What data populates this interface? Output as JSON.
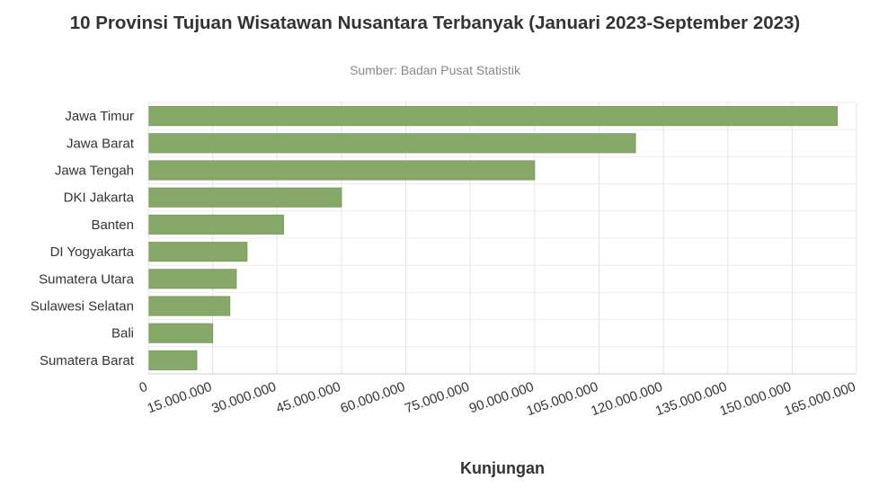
{
  "chart_data": {
    "type": "bar",
    "orientation": "horizontal",
    "title": "10 Provinsi Tujuan Wisatawan Nusantara Terbanyak (Januari 2023-September 2023)",
    "subtitle": "Sumber: Badan Pusat Statistik",
    "categories": [
      "Jawa Timur",
      "Jawa Barat",
      "Jawa Tengah",
      "DKI Jakarta",
      "Banten",
      "DI Yogyakarta",
      "Sumatera Utara",
      "Sulawesi Selatan",
      "Bali",
      "Sumatera Barat"
    ],
    "values": [
      160500000,
      113500000,
      90000000,
      45000000,
      31500000,
      23000000,
      20500000,
      19000000,
      15000000,
      11300000
    ],
    "xlabel": "Kunjungan",
    "ylabel": "",
    "xlim": [
      0,
      165000000
    ],
    "x_ticks": [
      "0",
      "15.000.000",
      "30.000.000",
      "45.000.000",
      "60.000.000",
      "75.000.000",
      "90.000.000",
      "105.000.000",
      "120.000.000",
      "135.000.000",
      "150.000.000",
      "165.000.000"
    ],
    "grid": true,
    "bar_color": "#86a96a"
  }
}
